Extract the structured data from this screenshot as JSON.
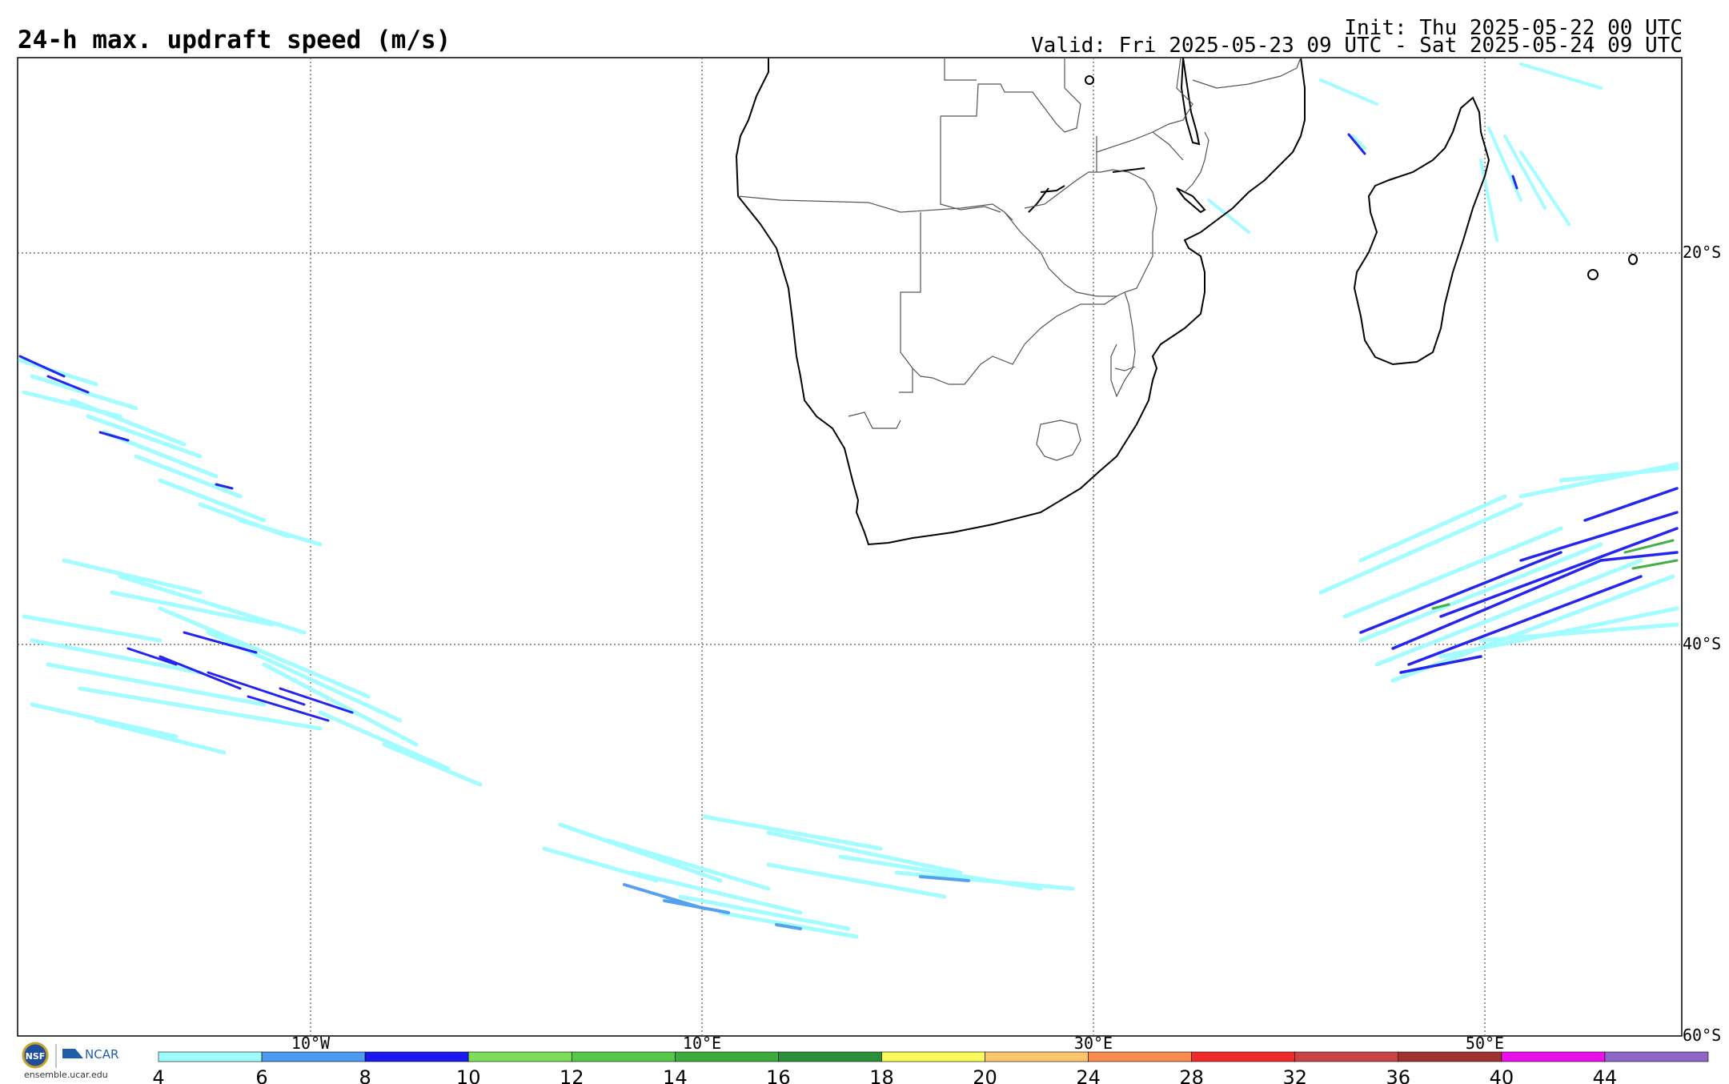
{
  "header": {
    "title": "24-h max. updraft speed (m/s)",
    "init": "Init: Thu 2025-05-22 00 UTC",
    "valid": "Valid: Fri 2025-05-23 09 UTC - Sat 2025-05-24 09 UTC"
  },
  "map": {
    "lon_labels": [
      "10°W",
      "10°E",
      "30°E",
      "50°E"
    ],
    "lat_labels": [
      "20°S",
      "40°S",
      "60°S"
    ],
    "gridlines": "dotted",
    "region": "Southern Africa and South Atlantic / Indian Ocean"
  },
  "colorbar": {
    "ticks": [
      "4",
      "6",
      "8",
      "10",
      "12",
      "14",
      "16",
      "18",
      "20",
      "24",
      "28",
      "32",
      "36",
      "40",
      "44"
    ],
    "colors": [
      "#9ffcff",
      "#4d9bf0",
      "#1a1aee",
      "#7fdc5a",
      "#56c84a",
      "#3aab3c",
      "#2a8f3a",
      "#fbf95c",
      "#fdc56b",
      "#f98c50",
      "#ee2a2a",
      "#c84444",
      "#a03232",
      "#ea10ea",
      "#9065c8"
    ]
  },
  "logos": {
    "org1": "NSF",
    "org2": "NCAR",
    "site": "ensemble.ucar.edu"
  }
}
